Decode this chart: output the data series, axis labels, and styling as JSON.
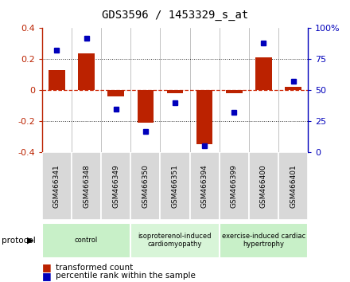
{
  "title": "GDS3596 / 1453329_s_at",
  "samples": [
    "GSM466341",
    "GSM466348",
    "GSM466349",
    "GSM466350",
    "GSM466351",
    "GSM466394",
    "GSM466399",
    "GSM466400",
    "GSM466401"
  ],
  "bar_values": [
    0.13,
    0.24,
    -0.04,
    -0.21,
    -0.02,
    -0.35,
    -0.02,
    0.21,
    0.02
  ],
  "dot_values": [
    82,
    92,
    35,
    17,
    40,
    5,
    32,
    88,
    57
  ],
  "groups": [
    {
      "label": "control",
      "start": 0,
      "end": 3,
      "color": "#c8f0c8"
    },
    {
      "label": "isoproterenol-induced\ncardiomyopathy",
      "start": 3,
      "end": 6,
      "color": "#d8f5d8"
    },
    {
      "label": "exercise-induced cardiac\nhypertrophy",
      "start": 6,
      "end": 9,
      "color": "#c8f0c8"
    }
  ],
  "bar_color": "#bb2200",
  "dot_color": "#0000bb",
  "zero_line_color": "#cc2200",
  "grid_color": "#333333",
  "ylim": [
    -0.4,
    0.4
  ],
  "y2lim": [
    0,
    100
  ],
  "yticks": [
    -0.4,
    -0.2,
    0.0,
    0.2,
    0.4
  ],
  "y2ticks": [
    0,
    25,
    50,
    75,
    100
  ],
  "y2ticklabels": [
    "0",
    "25",
    "50",
    "75",
    "100%"
  ],
  "bar_width": 0.55,
  "legend_label_bar": "transformed count",
  "legend_label_dot": "percentile rank within the sample",
  "protocol_label": "protocol",
  "sample_box_color": "#d8d8d8",
  "title_fontsize": 10,
  "tick_fontsize": 8,
  "sample_fontsize": 6.5,
  "legend_fontsize": 7.5,
  "group_fontsize": 6
}
